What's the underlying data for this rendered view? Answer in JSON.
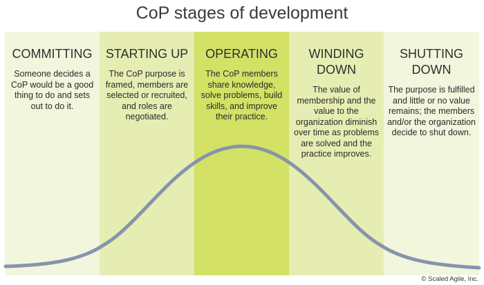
{
  "title": "CoP stages of development",
  "stages": [
    {
      "name": "COMMITTING",
      "description": "Someone decides a CoP would be a good thing to do and sets out to do it."
    },
    {
      "name": "STARTING UP",
      "description": "The CoP purpose is framed, members are selected or recruited, and roles are negotiated."
    },
    {
      "name": "OPERATING",
      "description": "The CoP members share knowledge, solve problems, build skills, and improve their practice."
    },
    {
      "name": "WINDING DOWN",
      "description": "The value of membership and the value to the organization diminish over time as problems are solved and the practice improves."
    },
    {
      "name": "SHUTTING DOWN",
      "description": "The purpose is fulfilled and little or no value remains; the members and/or the organization decide to shut down."
    }
  ],
  "copyright": "© Scaled Agile, Inc.",
  "colors": {
    "curve": "#8893ad",
    "stage_light": "#f2f6dd",
    "stage_mid": "#e6edb2",
    "stage_dark": "#d3e165"
  }
}
